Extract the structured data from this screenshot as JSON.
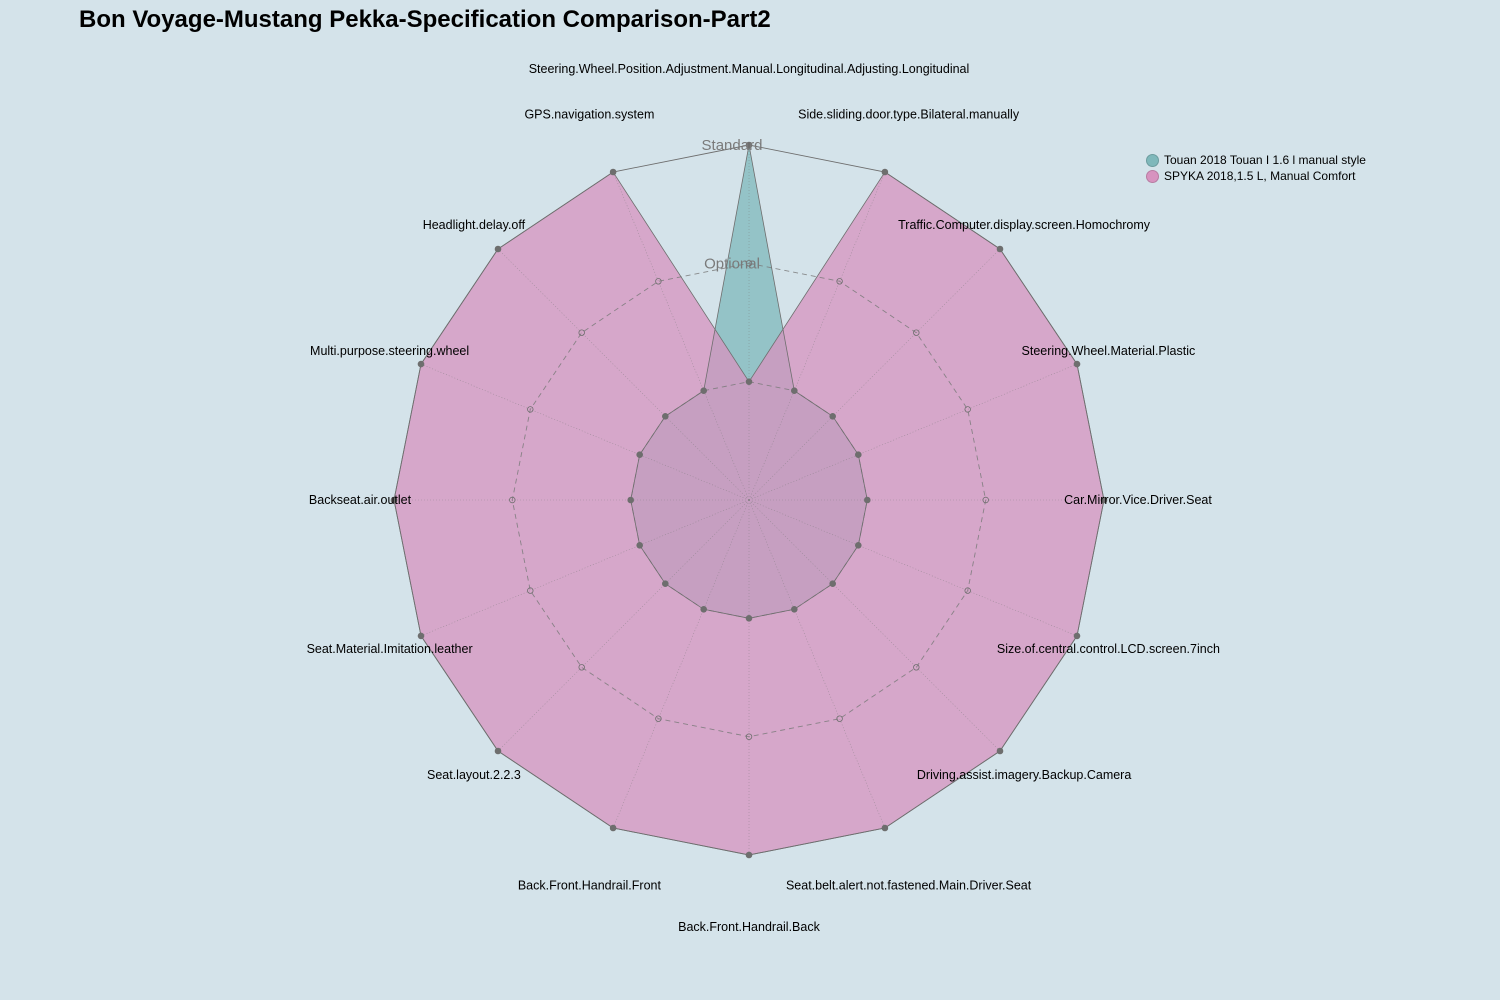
{
  "chart_data": {
    "type": "radar",
    "title": "Bon Voyage-Mustang Pekka-Specification Comparison-Part2",
    "level_labels": [
      "Optional",
      "Standard"
    ],
    "categories": [
      "Steering.Wheel.Position.Adjustment.Manual.Longitudinal.Adjusting.Longitudinal",
      "Side.sliding.door.type.Bilateral.manually",
      "Traffic.Computer.display.screen.Homochromy",
      "Steering.Wheel.Material.Plastic",
      "Car.Mirror.Vice.Driver.Seat",
      "Size.of.central.control.LCD.screen.7inch",
      "Driving.assist.imagery.Backup.Camera",
      "Seat.belt.alert.not.fastened.Main.Driver.Seat",
      "Back.Front.Handrail.Back",
      "Back.Front.Handrail.Front",
      "Seat.layout.2.2.3",
      "Seat.Material.Imitation.leather",
      "Backseat.air.outlet",
      "Multi.purpose.steering.wheel",
      "Headlight.delay.off",
      "GPS.navigation.system"
    ],
    "series": [
      {
        "name": "Touan 2018 Touan I 1.6 l manual style",
        "values": [
          2,
          0,
          0,
          0,
          0,
          0,
          0,
          0,
          0,
          0,
          0,
          0,
          0,
          0,
          0,
          0
        ]
      },
      {
        "name": "SPYKA 2018,1.5 L, Manual Comfort",
        "values": [
          0,
          2,
          2,
          2,
          2,
          2,
          2,
          2,
          2,
          2,
          2,
          2,
          2,
          2,
          2,
          2
        ]
      }
    ],
    "range": [
      -1,
      2
    ],
    "legend_position": "top-right",
    "colors": {
      "background": "#d4e3ea",
      "series": [
        "#7fb8bb",
        "#d793bf"
      ],
      "overlap": "#a986a4",
      "outline": "#6e6e6e",
      "grid": "#7a7a7a"
    }
  }
}
